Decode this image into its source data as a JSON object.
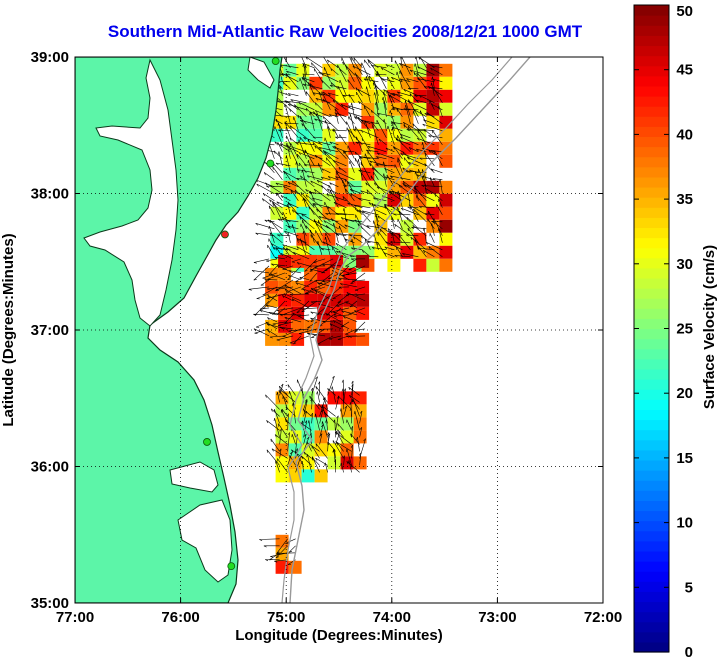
{
  "chart_data": {
    "type": "vector_field_map",
    "title": "Southern Mid-Atlantic Raw Velocities 2008/12/21 1000 GMT",
    "xlabel": "Longitude (Degrees:Minutes)",
    "ylabel": "Latitude (Degrees:Minutes)",
    "xlim": [
      -77,
      -72
    ],
    "ylim": [
      35,
      39
    ],
    "x_ticks": [
      -77,
      -76,
      -75,
      -74,
      -73,
      -72
    ],
    "x_tick_labels": [
      "77:00",
      "76:00",
      "75:00",
      "74:00",
      "73:00",
      "72:00"
    ],
    "y_ticks": [
      35,
      36,
      37,
      38,
      39
    ],
    "y_tick_labels": [
      "35:00",
      "36:00",
      "37:00",
      "38:00",
      "39:00"
    ],
    "grid": true,
    "colorbar": {
      "label": "Surface Velocity (cm/s)",
      "min": 0,
      "max": 50,
      "ticks": [
        0,
        5,
        10,
        15,
        20,
        25,
        30,
        35,
        40,
        45,
        50
      ]
    },
    "velocity_regions": [
      {
        "lon_range": [
          -75.15,
          -73.5
        ],
        "lat_range": [
          37.5,
          38.95
        ],
        "speed_cm_s": [
          18,
          50
        ]
      },
      {
        "lon_range": [
          -75.2,
          -74.25
        ],
        "lat_range": [
          36.95,
          37.55
        ],
        "speed_cm_s": [
          35,
          50
        ]
      },
      {
        "lon_range": [
          -75.1,
          -74.3
        ],
        "lat_range": [
          35.95,
          36.55
        ],
        "speed_cm_s": [
          15,
          50
        ]
      },
      {
        "lon_range": [
          -75.1,
          -74.9
        ],
        "lat_range": [
          35.3,
          35.5
        ],
        "speed_cm_s": [
          35,
          50
        ]
      }
    ],
    "stations": [
      {
        "lon": -75.1,
        "lat": 38.97,
        "color": "#22dd22"
      },
      {
        "lon": -75.15,
        "lat": 38.22,
        "color": "#22dd22"
      },
      {
        "lon": -75.58,
        "lat": 37.7,
        "color": "#ee2222"
      },
      {
        "lon": -75.75,
        "lat": 36.18,
        "color": "#22dd22"
      },
      {
        "lon": -75.52,
        "lat": 35.27,
        "color": "#22dd22"
      }
    ],
    "colors": {
      "land": "#5cf5a8",
      "shelf_contour": "#999999",
      "coastline": "#0a3a1a"
    }
  }
}
